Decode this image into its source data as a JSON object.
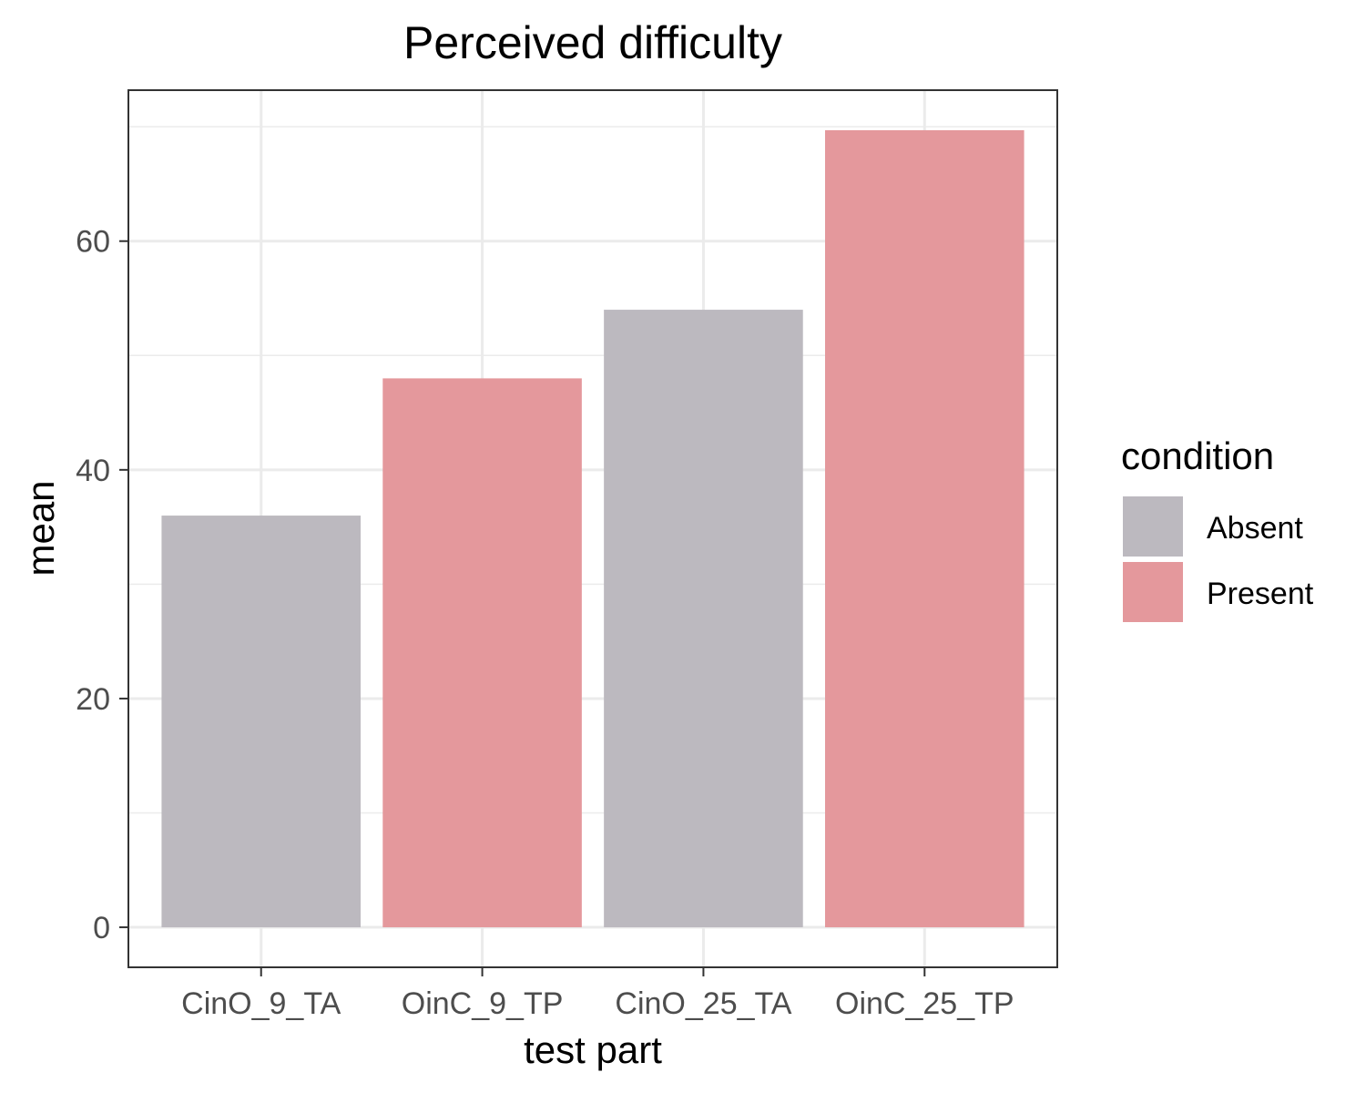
{
  "chart_data": {
    "type": "bar",
    "title": "Perceived difficulty",
    "xlabel": "test part",
    "ylabel": "mean",
    "categories": [
      "CinO_9_TA",
      "OinC_9_TP",
      "CinO_25_TA",
      "OinC_25_TP"
    ],
    "values": [
      36,
      48,
      54,
      69.7
    ],
    "bar_condition": [
      "Absent",
      "Present",
      "Absent",
      "Present"
    ],
    "ylim": [
      -3.5,
      73.2
    ],
    "yticks": [
      0,
      20,
      40,
      60
    ],
    "grid": true,
    "legend": {
      "title": "condition",
      "position": "right",
      "items": [
        {
          "label": "Absent",
          "color": "#bcb9bf"
        },
        {
          "label": "Present",
          "color": "#e4989c"
        }
      ]
    },
    "colors": {
      "panel_border": "#333333",
      "grid": "#ebebeb",
      "tick": "#333333"
    }
  }
}
